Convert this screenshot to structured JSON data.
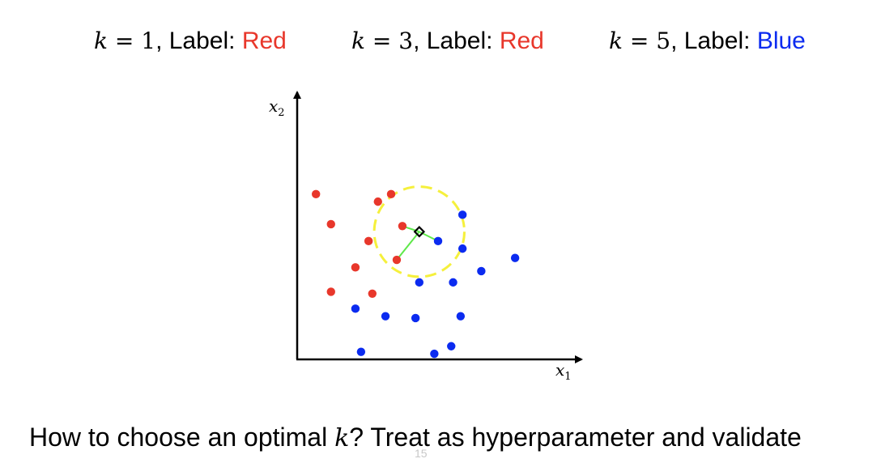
{
  "headings": [
    {
      "k_var": "k",
      "k_eq": " = ",
      "k_val": "1",
      "sep": ", Label: ",
      "label": "Red",
      "label_color": "#e8372b"
    },
    {
      "k_var": "k",
      "k_eq": " = ",
      "k_val": "3",
      "sep": ", Label: ",
      "label": "Red",
      "label_color": "#e8372b"
    },
    {
      "k_var": "k",
      "k_eq": " = ",
      "k_val": "5",
      "sep": ", Label: ",
      "label": "Blue",
      "label_color": "#0b2bf0"
    }
  ],
  "plot": {
    "x_axis_var": "x",
    "x_axis_sub": "1",
    "y_axis_var": "x",
    "y_axis_sub": "2",
    "colors": {
      "red": "#e8372b",
      "blue": "#0b2bf0",
      "neighbor_line": "#5fe84a",
      "circle": "#f5f03c",
      "query": "#000000"
    },
    "red_points": [
      [
        1.0,
        8.8
      ],
      [
        4.3,
        8.4
      ],
      [
        5.0,
        8.8
      ],
      [
        1.8,
        7.2
      ],
      [
        5.6,
        7.1
      ],
      [
        3.8,
        6.3
      ],
      [
        5.3,
        5.3
      ],
      [
        3.1,
        4.9
      ],
      [
        1.8,
        3.6
      ],
      [
        4.0,
        3.5
      ]
    ],
    "blue_points": [
      [
        8.8,
        7.7
      ],
      [
        7.5,
        6.3
      ],
      [
        8.8,
        5.9
      ],
      [
        11.6,
        5.4
      ],
      [
        9.8,
        4.7
      ],
      [
        6.5,
        4.1
      ],
      [
        8.3,
        4.1
      ],
      [
        3.1,
        2.7
      ],
      [
        4.7,
        2.3
      ],
      [
        6.3,
        2.2
      ],
      [
        8.7,
        2.3
      ],
      [
        3.4,
        0.4
      ],
      [
        7.3,
        0.3
      ],
      [
        8.2,
        0.7
      ]
    ],
    "query_point": [
      6.5,
      6.8
    ],
    "k_circle_radius": 2.4
  },
  "caption": {
    "before": "How to choose an optimal ",
    "k": "k",
    "after": "? Treat as hyperparameter and validate"
  },
  "page_number": "15"
}
